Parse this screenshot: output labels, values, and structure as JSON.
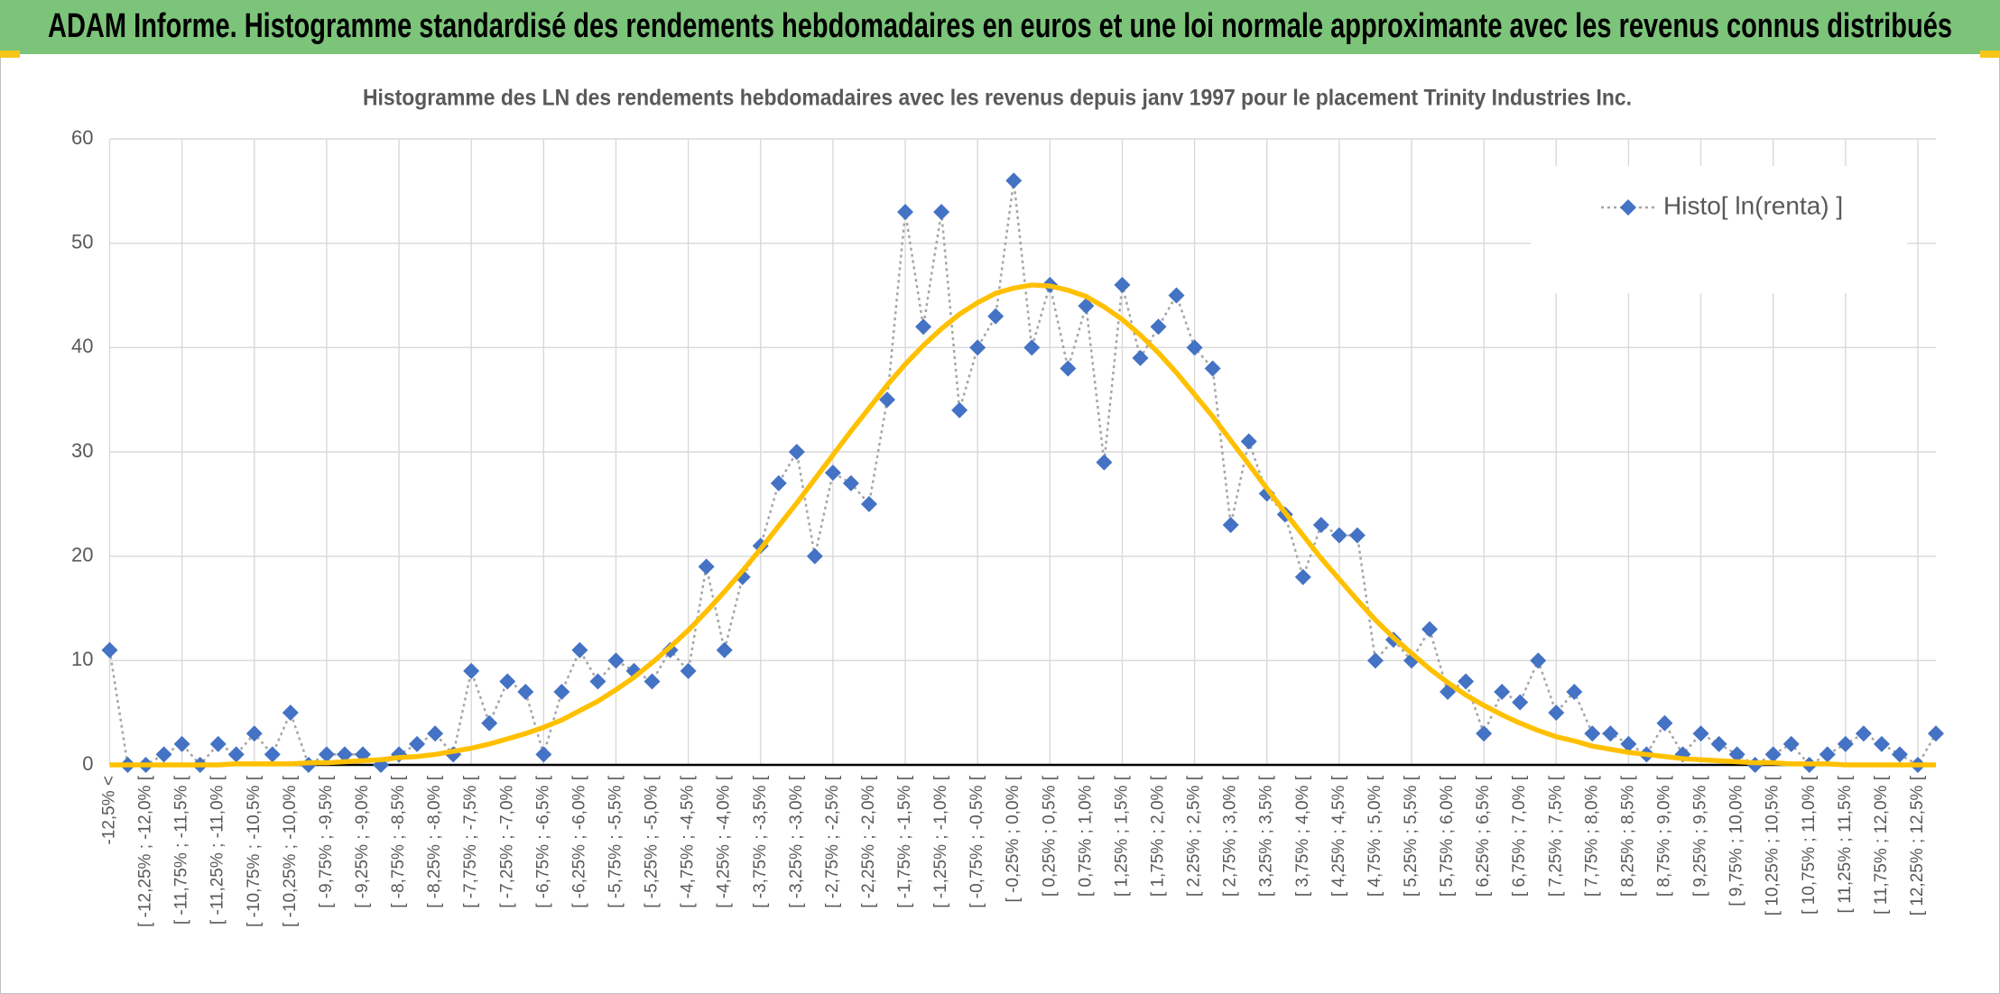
{
  "header": {
    "title": "ADAM Informe. Histogramme standardisé des rendements hebdomadaires en euros et une loi normale approximante avec les revenus connus distribués"
  },
  "chart_data": {
    "type": "line",
    "title": "Histogramme des LN des rendements hebdomadaires avec les revenus depuis janv 1997 pour le placement Trinity Industries Inc.",
    "categories": [
      "-12,5% <",
      null,
      "[ -12,25% ; -12,0% [",
      null,
      "[ -11,75% ; -11,5% [",
      null,
      "[ -11,25% ; -11,0% [",
      null,
      "[ -10,75% ; -10,5% [",
      null,
      "[ -10,25% ; -10,0% [",
      null,
      "[ -9,75% ; -9,5% [",
      null,
      "[ -9,25% ; -9,0% [",
      null,
      "[ -8,75% ; -8,5% [",
      null,
      "[ -8,25% ; -8,0% [",
      null,
      "[ -7,75% ; -7,5% [",
      null,
      "[ -7,25% ; -7,0% [",
      null,
      "[ -6,75% ; -6,5% [",
      null,
      "[ -6,25% ; -6,0% [",
      null,
      "[ -5,75% ; -5,5% [",
      null,
      "[ -5,25% ; -5,0% [",
      null,
      "[ -4,75% ; -4,5% [",
      null,
      "[ -4,25% ; -4,0% [",
      null,
      "[ -3,75% ; -3,5% [",
      null,
      "[ -3,25% ; -3,0% [",
      null,
      "[ -2,75% ; -2,5% [",
      null,
      "[ -2,25% ; -2,0% [",
      null,
      "[ -1,75% ; -1,5% [",
      null,
      "[ -1,25% ; -1,0% [",
      null,
      "[ -0,75% ; -0,5% [",
      null,
      "[ -0,25% ; 0,0% [",
      null,
      "[ 0,25% ; 0,5% [",
      null,
      "[ 0,75% ; 1,0% [",
      null,
      "[ 1,25% ; 1,5% [",
      null,
      "[ 1,75% ; 2,0% [",
      null,
      "[ 2,25% ; 2,5% [",
      null,
      "[ 2,75% ; 3,0% [",
      null,
      "[ 3,25% ; 3,5% [",
      null,
      "[ 3,75% ; 4,0% [",
      null,
      "[ 4,25% ; 4,5% [",
      null,
      "[ 4,75% ; 5,0% [",
      null,
      "[ 5,25% ; 5,5% [",
      null,
      "[ 5,75% ; 6,0% [",
      null,
      "[ 6,25% ; 6,5% [",
      null,
      "[ 6,75% ; 7,0% [",
      null,
      "[ 7,25% ; 7,5% [",
      null,
      "[ 7,75% ; 8,0% [",
      null,
      "[ 8,25% ; 8,5% [",
      null,
      "[ 8,75% ; 9,0% [",
      null,
      "[ 9,25% ; 9,5% [",
      null,
      "[ 9,75% ; 10,0% [",
      null,
      "[ 10,25% ; 10,5% [",
      null,
      "[ 10,75% ; 11,0% [",
      null,
      "[ 11,25% ; 11,5% [",
      null,
      "[ 11,75% ; 12,0% [",
      null,
      "[ 12,25% ; 12,5% [",
      null
    ],
    "series": [
      {
        "name": "Histo[ ln(renta) ]",
        "color": "#4472c4",
        "line_color": "#a5a5a5",
        "marker": "diamond",
        "values": [
          11,
          0,
          0,
          1,
          2,
          0,
          2,
          1,
          3,
          1,
          5,
          0,
          1,
          1,
          1,
          0,
          1,
          2,
          3,
          1,
          9,
          4,
          8,
          7,
          1,
          7,
          11,
          8,
          10,
          9,
          8,
          11,
          9,
          19,
          11,
          18,
          21,
          27,
          30,
          20,
          28,
          27,
          25,
          35,
          53,
          42,
          53,
          34,
          40,
          43,
          56,
          40,
          46,
          38,
          44,
          29,
          46,
          39,
          42,
          45,
          40,
          38,
          23,
          31,
          26,
          24,
          18,
          23,
          22,
          22,
          10,
          12,
          10,
          13,
          7,
          8,
          3,
          7,
          6,
          10,
          5,
          7,
          3,
          3,
          2,
          1,
          4,
          1,
          3,
          2,
          1,
          0,
          1,
          2,
          0,
          1,
          2,
          3,
          2,
          1,
          0,
          3
        ]
      },
      {
        "color": "#ffc000",
        "values": [
          0,
          0,
          0,
          0,
          0,
          0,
          0,
          0.1,
          0.1,
          0.1,
          0.1,
          0.2,
          0.2,
          0.3,
          0.4,
          0.5,
          0.7,
          0.8,
          1.0,
          1.3,
          1.6,
          2.0,
          2.5,
          3.0,
          3.6,
          4.3,
          5.2,
          6.1,
          7.2,
          8.4,
          9.8,
          11.3,
          12.9,
          14.7,
          16.6,
          18.6,
          20.7,
          22.9,
          25.1,
          27.4,
          29.7,
          32.0,
          34.2,
          36.4,
          38.4,
          40.2,
          41.8,
          43.2,
          44.3,
          45.2,
          45.7,
          46.0,
          45.9,
          45.5,
          44.9,
          43.9,
          42.7,
          41.2,
          39.5,
          37.6,
          35.5,
          33.4,
          31.1,
          28.8,
          26.5,
          24.2,
          22.0,
          19.8,
          17.8,
          15.8,
          13.9,
          12.2,
          10.7,
          9.2,
          7.9,
          6.7,
          5.7,
          4.8,
          4.0,
          3.3,
          2.7,
          2.3,
          1.8,
          1.5,
          1.2,
          1.0,
          0.8,
          0.6,
          0.5,
          0.4,
          0.3,
          0.2,
          0.2,
          0.1,
          0.1,
          0.1,
          0,
          0,
          0,
          0,
          0,
          0
        ]
      }
    ],
    "ylim": [
      0,
      60
    ],
    "yticks": [
      0,
      10,
      20,
      30,
      40,
      50,
      60
    ],
    "grid": true,
    "legend": "upper right"
  }
}
